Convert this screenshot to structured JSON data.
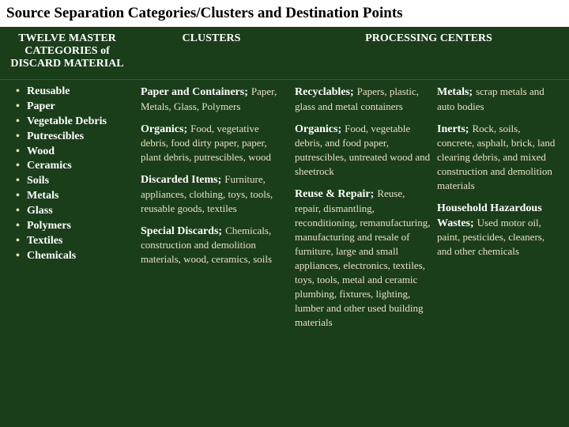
{
  "title": "Source Separation Categories/Clusters and Destination Points",
  "headers": {
    "master": "TWELVE MASTER CATEGORIES of DISCARD MATERIAL",
    "clusters": "CLUSTERS",
    "processing": "PROCESSING CENTERS"
  },
  "master_categories": [
    "Reusable",
    "Paper",
    "Vegetable Debris",
    "Putrescibles",
    "Wood",
    "Ceramics",
    "Soils",
    "Metals",
    "Glass",
    "Polymers",
    "Textiles",
    "Chemicals"
  ],
  "clusters": [
    {
      "title": "Paper and Containers;",
      "body": "Paper, Metals, Glass, Polymers"
    },
    {
      "title": "Organics;",
      "body": "Food, vegetative debris, food dirty paper, paper, plant debris, putrescibles, wood"
    },
    {
      "title": "Discarded Items;",
      "body": "Furniture, appliances, clothing, toys, tools, reusable goods, textiles"
    },
    {
      "title": "Special Discards;",
      "body": "Chemicals, construction and demolition materials, wood, ceramics, soils"
    }
  ],
  "processing_a": [
    {
      "title": "Recyclables;",
      "body": "Papers, plastic, glass and metal containers"
    },
    {
      "title": "Organics;",
      "body": "Food, vegetable debris, and food paper, putrescibles, untreated wood and sheetrock"
    },
    {
      "title": "Reuse & Repair;",
      "body": "Reuse, repair, dismantling, reconditioning, remanufacturing, manufacturing and resale of furniture, large and small appliances, electronics, textiles, toys, tools, metal and ceramic plumbing, fixtures, lighting, lumber and other used building materials"
    }
  ],
  "processing_b": [
    {
      "title": "Metals;",
      "body": "scrap metals and auto bodies"
    },
    {
      "title": "Inerts;",
      "body": "Rock, soils, concrete, asphalt, brick, land clearing debris, and mixed construction and demolition materials"
    },
    {
      "title": "Household Hazardous Wastes;",
      "body": "Used motor oil, paint, pesticides, cleaners, and other chemicals"
    }
  ],
  "colors": {
    "page_bg": "#1a3d1a",
    "title_bg": "#ffffff",
    "title_fg": "#000000",
    "heading_fg": "#ffffff",
    "body_fg": "#e8e0c0"
  }
}
